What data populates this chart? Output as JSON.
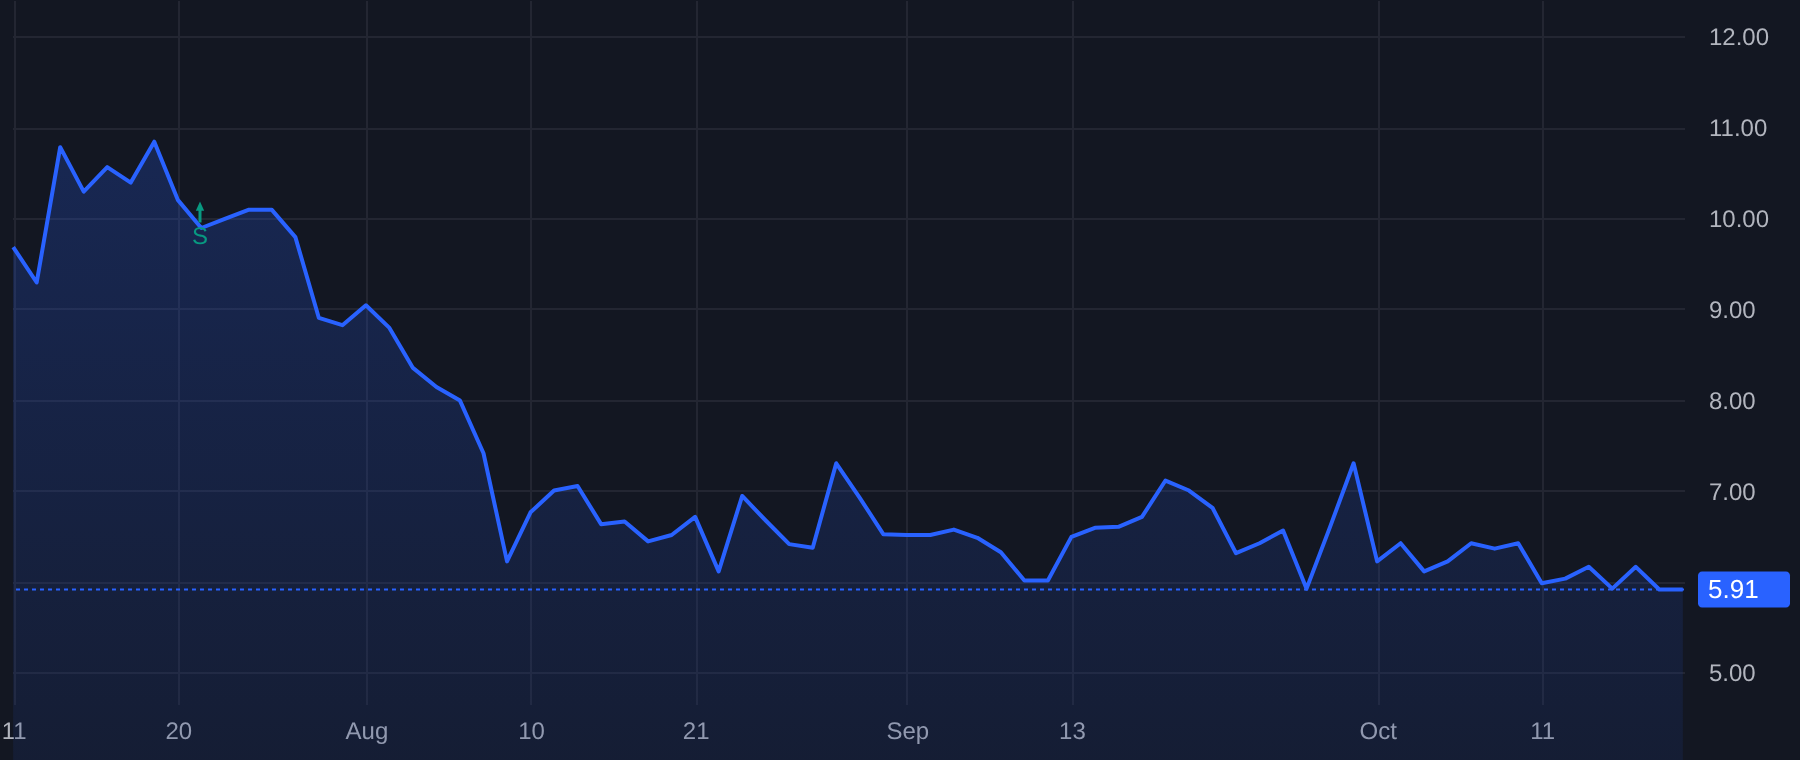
{
  "chart_data": {
    "type": "area",
    "categories": [
      "11",
      null,
      null,
      null,
      null,
      null,
      null,
      "20",
      null,
      null,
      null,
      null,
      null,
      null,
      null,
      "Aug",
      null,
      null,
      null,
      null,
      null,
      null,
      "10",
      null,
      null,
      null,
      null,
      null,
      null,
      "21",
      null,
      null,
      null,
      null,
      null,
      null,
      null,
      null,
      "Sep",
      null,
      null,
      null,
      null,
      null,
      null,
      "13",
      null,
      null,
      null,
      null,
      null,
      null,
      null,
      null,
      null,
      null,
      null,
      null,
      "Oct",
      null,
      null,
      null,
      null,
      null,
      null,
      "11",
      null,
      null,
      null,
      null,
      null,
      null
    ],
    "series": [
      {
        "color": "#2962ff",
        "values": [
          9.68,
          9.29,
          10.78,
          10.29,
          10.56,
          10.39,
          10.84,
          10.2,
          9.89,
          9.99,
          10.09,
          10.09,
          9.79,
          8.9,
          8.82,
          9.04,
          8.79,
          8.35,
          8.14,
          7.99,
          7.41,
          6.22,
          6.76,
          7.0,
          7.05,
          6.63,
          6.66,
          6.44,
          6.51,
          6.71,
          6.11,
          6.94,
          6.67,
          6.41,
          6.37,
          7.3,
          6.92,
          6.52,
          6.51,
          6.51,
          6.57,
          6.48,
          6.32,
          6.01,
          6.01,
          6.49,
          6.59,
          6.6,
          6.71,
          7.11,
          7.0,
          6.81,
          6.31,
          6.42,
          6.56,
          5.92,
          6.6,
          7.3,
          6.22,
          6.42,
          6.11,
          6.22,
          6.42,
          6.36,
          6.42,
          5.98,
          6.03,
          6.16,
          5.92,
          6.16,
          5.91,
          5.91
        ]
      }
    ],
    "ylim": [
      4.65,
      12.4
    ],
    "yticks": [
      {
        "value": 5,
        "label": "5.00"
      },
      {
        "value": 6,
        "label": null
      },
      {
        "value": 7,
        "label": "7.00"
      },
      {
        "value": 8,
        "label": "8.00"
      },
      {
        "value": 9,
        "label": "9.00"
      },
      {
        "value": 10,
        "label": "10.00"
      },
      {
        "value": 11,
        "label": "11.00"
      },
      {
        "value": 12,
        "label": "12.00"
      }
    ],
    "grid": true,
    "ref_lines": [
      {
        "axis": "y",
        "value": 5.91,
        "label": "5.91",
        "color": "#2962ff",
        "line_style": "dotted"
      }
    ],
    "annotations": [
      "S"
    ]
  }
}
